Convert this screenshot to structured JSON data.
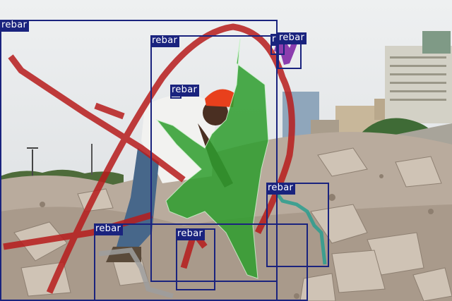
{
  "image": {
    "subject": "construction worker in hard hat among concrete rubble with rebar",
    "palette": {
      "sky": "#e3e6e8",
      "rubble": "#b8aa9c",
      "red_mask": "#b71c1c",
      "green_mask": "#2e9e2e",
      "teal_mask": "#2a9d8f",
      "purple_mask": "#7b1fa2",
      "gray_mask": "#9e9e9e",
      "box": "#1a237e",
      "label_text": "#ffffff"
    }
  },
  "detections": [
    {
      "label": "rebar",
      "color": "#1a237e"
    },
    {
      "label": "rebar",
      "color": "#1a237e"
    },
    {
      "label": "r",
      "color": "#1a237e"
    },
    {
      "label": "rebar",
      "color": "#1a237e"
    },
    {
      "label": "rebar",
      "color": "#1a237e"
    },
    {
      "label": "rebar",
      "color": "#1a237e"
    },
    {
      "label": "rebar",
      "color": "#1a237e"
    },
    {
      "label": "rebar",
      "color": "#1a237e"
    }
  ]
}
